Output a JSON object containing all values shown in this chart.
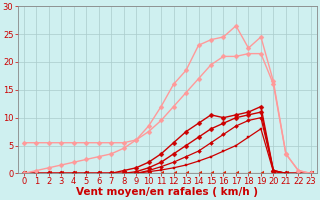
{
  "background_color": "#cff0f0",
  "grid_color": "#aacccc",
  "xlabel": "Vent moyen/en rafales ( km/h )",
  "xlabel_color": "#cc0000",
  "xlabel_fontsize": 7.5,
  "tick_color": "#cc0000",
  "tick_fontsize": 6,
  "xlim": [
    -0.5,
    23.5
  ],
  "ylim": [
    0,
    30
  ],
  "yticks": [
    0,
    5,
    10,
    15,
    20,
    25,
    30
  ],
  "xticks": [
    0,
    1,
    2,
    3,
    4,
    5,
    6,
    7,
    8,
    9,
    10,
    11,
    12,
    13,
    14,
    15,
    16,
    17,
    18,
    19,
    20,
    21,
    22,
    23
  ],
  "series": [
    {
      "x": [
        0,
        1,
        2,
        3,
        4,
        5,
        6,
        7,
        8,
        9,
        10,
        11,
        12,
        13,
        14,
        15,
        16,
        17,
        18,
        19,
        20,
        21,
        22,
        23
      ],
      "y": [
        0,
        0,
        0,
        0,
        0,
        0,
        0,
        0,
        0,
        0,
        0,
        0,
        0,
        0,
        0,
        0,
        0,
        0,
        0,
        0,
        0,
        0,
        0,
        0
      ],
      "color": "#dd2200",
      "linewidth": 0.8,
      "marker": 4,
      "markersize": 3
    },
    {
      "x": [
        0,
        1,
        2,
        3,
        4,
        5,
        6,
        7,
        8,
        9,
        10,
        11,
        12,
        13,
        14,
        15,
        16,
        17,
        18,
        19,
        20,
        21,
        22,
        23
      ],
      "y": [
        0,
        0,
        0,
        0,
        0,
        0,
        0,
        0,
        0,
        0,
        0.3,
        0.6,
        1.0,
        1.5,
        2.2,
        3.0,
        4.0,
        5.0,
        6.5,
        8.0,
        0.3,
        0,
        0,
        0
      ],
      "color": "#cc0000",
      "linewidth": 0.9,
      "marker": "s",
      "markersize": 2
    },
    {
      "x": [
        0,
        1,
        2,
        3,
        4,
        5,
        6,
        7,
        8,
        9,
        10,
        11,
        12,
        13,
        14,
        15,
        16,
        17,
        18,
        19,
        20,
        21,
        22,
        23
      ],
      "y": [
        0,
        0,
        0,
        0,
        0,
        0,
        0,
        0,
        0,
        0,
        0.5,
        1.2,
        2.0,
        3.0,
        4.0,
        5.5,
        7.0,
        8.5,
        9.5,
        10.0,
        0.5,
        0,
        0,
        0
      ],
      "color": "#cc0000",
      "linewidth": 0.9,
      "marker": "D",
      "markersize": 2
    },
    {
      "x": [
        0,
        1,
        2,
        3,
        4,
        5,
        6,
        7,
        8,
        9,
        10,
        11,
        12,
        13,
        14,
        15,
        16,
        17,
        18,
        19,
        20,
        21,
        22,
        23
      ],
      "y": [
        0,
        0,
        0,
        0,
        0,
        0,
        0,
        0,
        0,
        0.3,
        1.0,
        2.0,
        3.5,
        5.0,
        6.5,
        8.0,
        9.0,
        10.0,
        10.5,
        11.0,
        0.5,
        0,
        0,
        0
      ],
      "color": "#cc0000",
      "linewidth": 1.0,
      "marker": "D",
      "markersize": 2.5
    },
    {
      "x": [
        0,
        1,
        2,
        3,
        4,
        5,
        6,
        7,
        8,
        9,
        10,
        11,
        12,
        13,
        14,
        15,
        16,
        17,
        18,
        19,
        20,
        21,
        22,
        23
      ],
      "y": [
        0,
        0,
        0,
        0,
        0,
        0,
        0,
        0,
        0.5,
        1.0,
        2.0,
        3.5,
        5.5,
        7.5,
        9.0,
        10.5,
        10.0,
        10.5,
        11.0,
        12.0,
        0.5,
        0,
        0,
        0
      ],
      "color": "#cc0000",
      "linewidth": 1.0,
      "marker": "D",
      "markersize": 2.5
    },
    {
      "x": [
        0,
        1,
        2,
        3,
        4,
        5,
        6,
        7,
        8,
        9,
        10,
        11,
        12,
        13,
        14,
        15,
        16,
        17,
        18,
        19,
        20,
        21,
        22,
        23
      ],
      "y": [
        5.5,
        5.5,
        5.5,
        5.5,
        5.5,
        5.5,
        5.5,
        5.5,
        5.5,
        6.0,
        7.5,
        9.5,
        12.0,
        14.5,
        17.0,
        19.5,
        21.0,
        21.0,
        21.5,
        21.5,
        16.0,
        3.5,
        0.5,
        0
      ],
      "color": "#ff9999",
      "linewidth": 1.0,
      "marker": "D",
      "markersize": 2.5
    },
    {
      "x": [
        0,
        1,
        2,
        3,
        4,
        5,
        6,
        7,
        8,
        9,
        10,
        11,
        12,
        13,
        14,
        15,
        16,
        17,
        18,
        19,
        20,
        21,
        22,
        23
      ],
      "y": [
        0,
        0.5,
        1.0,
        1.5,
        2.0,
        2.5,
        3.0,
        3.5,
        4.5,
        6.0,
        8.5,
        12.0,
        16.0,
        18.5,
        23.0,
        24.0,
        24.5,
        26.5,
        22.5,
        24.5,
        16.5,
        3.5,
        0.5,
        0
      ],
      "color": "#ff9999",
      "linewidth": 1.0,
      "marker": "D",
      "markersize": 2.5
    }
  ]
}
